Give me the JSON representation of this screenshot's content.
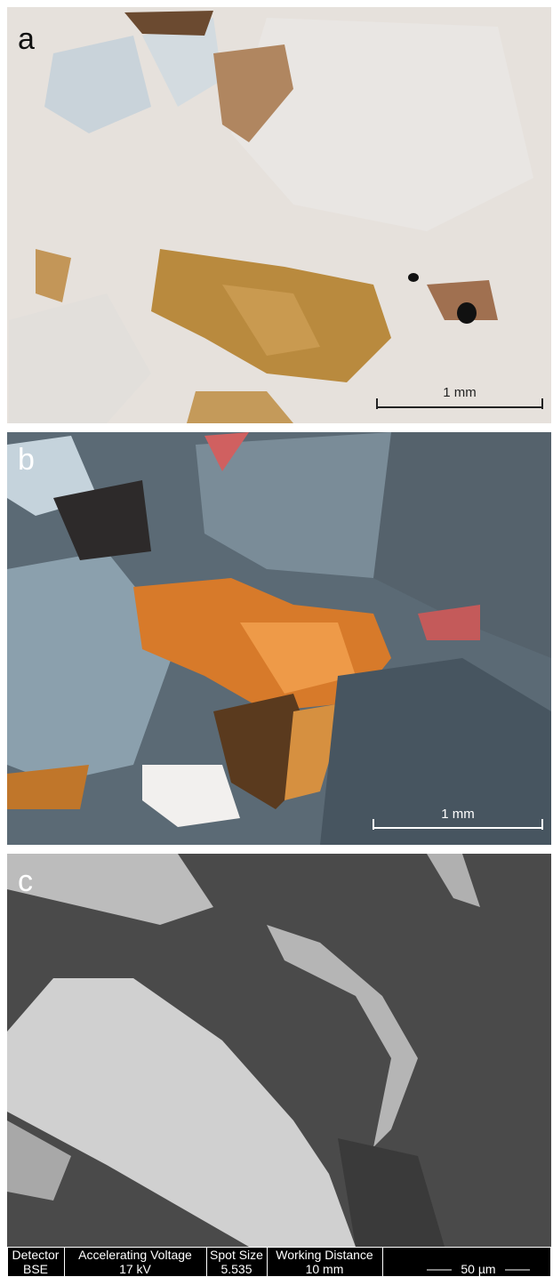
{
  "panels": [
    {
      "label": "a",
      "scale_bar": "1 mm"
    },
    {
      "label": "b",
      "scale_bar": "1 mm"
    },
    {
      "label": "c",
      "info_bar": {
        "headers": [
          "Detector",
          "Accelerating Voltage",
          "Spot Size",
          "Working Distance"
        ],
        "values": [
          "BSE",
          "17 kV",
          "5.535",
          "10 mm"
        ],
        "scale_bar": "50 µm"
      }
    }
  ]
}
